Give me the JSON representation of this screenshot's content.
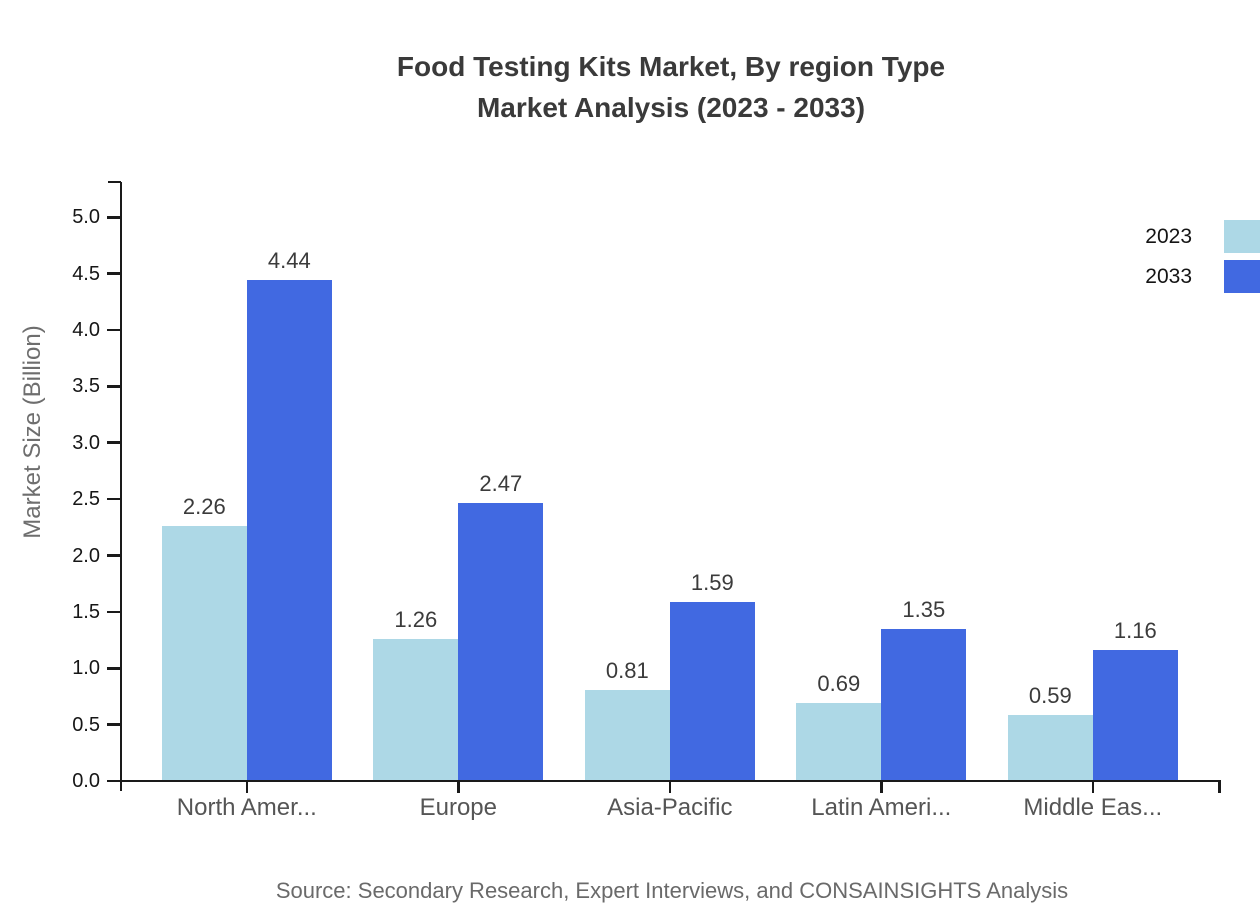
{
  "title": {
    "line1": "Food Testing Kits Market, By region Type",
    "line2": "Market Analysis (2023 - 2033)"
  },
  "source_note": "Source: Secondary Research, Expert Interviews, and CONSAINSIGHTS Analysis",
  "chart_data": {
    "type": "bar",
    "title": "Food Testing Kits Market, By region Type Market Analysis (2023 - 2033)",
    "categories": [
      "North Amer...",
      "Europe",
      "Asia-Pacific",
      "Latin Ameri...",
      "Middle Eas..."
    ],
    "series": [
      {
        "name": "2023",
        "color": "#ADD8E6",
        "values": [
          2.26,
          1.26,
          0.81,
          0.69,
          0.59
        ]
      },
      {
        "name": "2033",
        "color": "#4169E1",
        "values": [
          4.44,
          2.47,
          1.59,
          1.35,
          1.16
        ]
      }
    ],
    "xlabel": "",
    "ylabel": "Market Size (Billion)",
    "ylim": [
      0.0,
      5.0
    ],
    "ytick_step": 0.5,
    "value_label_decimals": 2,
    "grid": false,
    "legend_position": "top-right",
    "axis_color": "#1a1a1a",
    "background": "#ffffff"
  }
}
